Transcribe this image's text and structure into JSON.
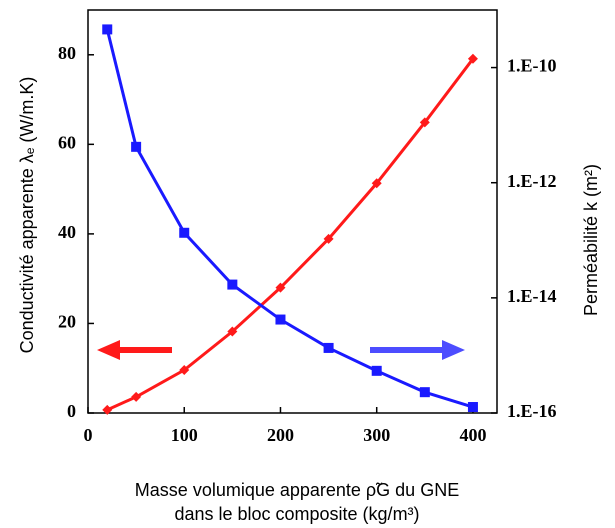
{
  "chart_data": {
    "type": "line",
    "x": [
      20,
      50,
      100,
      150,
      200,
      250,
      300,
      350,
      400
    ],
    "xlim": [
      0,
      425
    ],
    "xticks": [
      0,
      100,
      200,
      300,
      400
    ],
    "ylim": [
      0,
      90
    ],
    "yticks": [
      0,
      20,
      40,
      60,
      80
    ],
    "y2lim": [
      1e-16,
      1e-09
    ],
    "y2log": true,
    "y2ticks": [
      {
        "value": 1e-16,
        "label": "1.E-16"
      },
      {
        "value": 1e-14,
        "label": "1.E-14"
      },
      {
        "value": 1e-12,
        "label": "1.E-12"
      },
      {
        "value": 1e-10,
        "label": "1.E-10"
      }
    ],
    "xlabel": [
      "Masse volumique apparente ρ̃G du GNE",
      "dans le bloc composite (kg/m³)"
    ],
    "ylabel": "Conductivité apparente λₑ (W/m.K)",
    "y2label": "Perméabilité  k  (m²)",
    "series": [
      {
        "color": "#ff1a1a",
        "marker": "diamond",
        "values": [
          0.7,
          3.6,
          9.6,
          18.2,
          28,
          38.9,
          51.3,
          64.9,
          79.1
        ]
      },
      {
        "color": "#1a1aff",
        "marker": "square",
        "axis": "y2",
        "values": [
          4.6e-10,
          4.2e-12,
          1.35e-13,
          1.7e-14,
          4.2e-15,
          1.35e-15,
          5.4e-16,
          2.3e-16,
          1.27e-16
        ]
      }
    ]
  }
}
